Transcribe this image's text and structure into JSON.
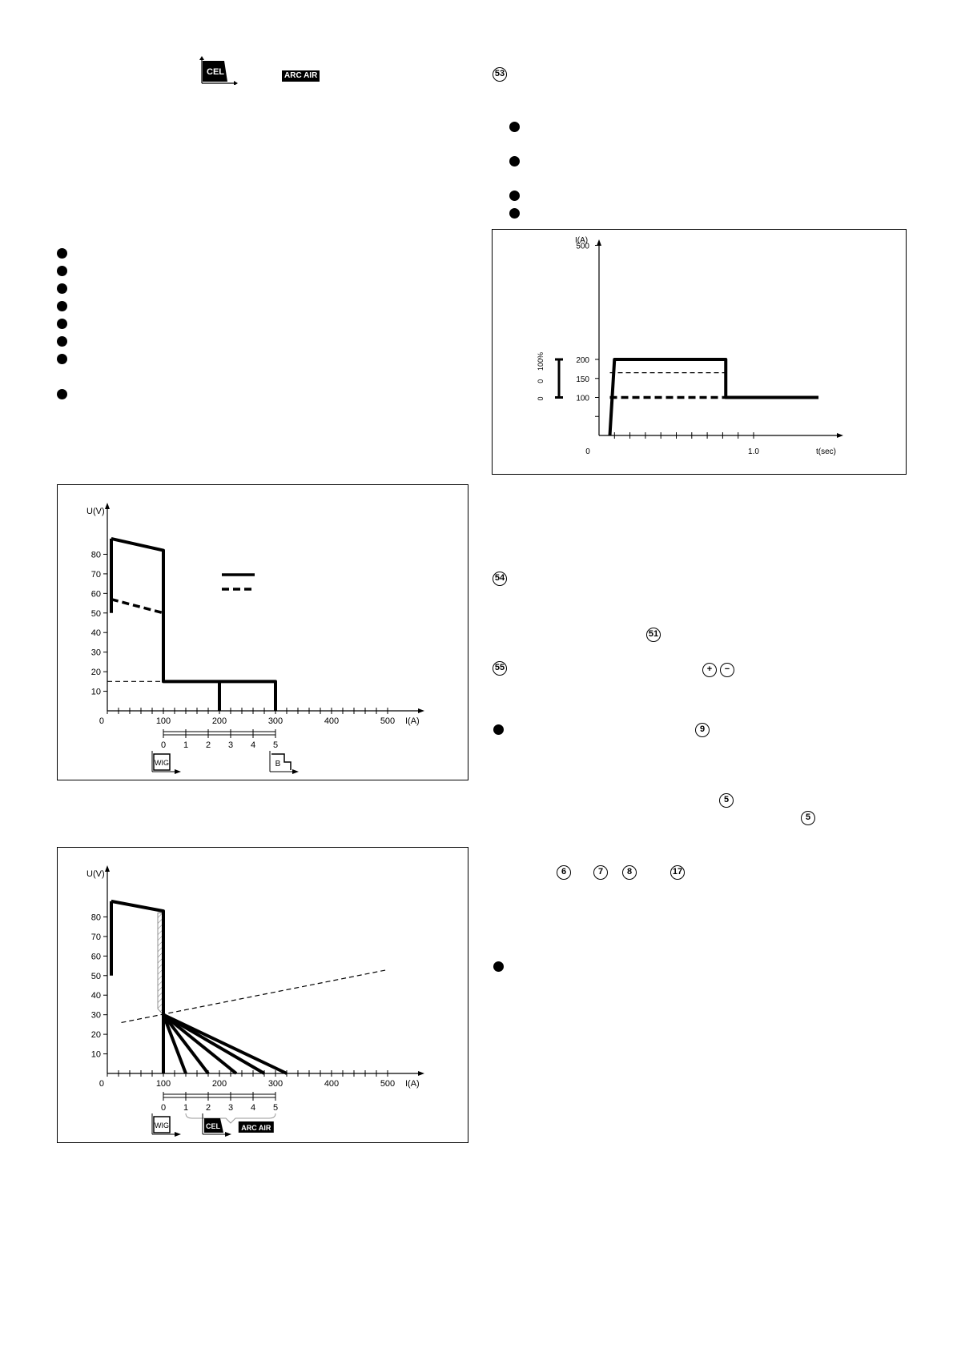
{
  "header_icons": {
    "cel_label": "CEL",
    "arc_air_label": "ARC AIR"
  },
  "markers": {
    "m53": "53",
    "m54": "54",
    "m51": "51",
    "m55": "55",
    "m9": "9",
    "m5a": "5",
    "m5b": "5",
    "m6": "6",
    "m7": "7",
    "m8": "8",
    "m17": "17",
    "plus": "+",
    "minus": "−"
  },
  "chart_data": [
    {
      "type": "line",
      "xlabel": "I(A)",
      "ylabel": "U(V)",
      "xlim": [
        0,
        500
      ],
      "ylim": [
        0,
        90
      ],
      "x_ticks": [
        "0",
        "100",
        "200",
        "300",
        "400",
        "500"
      ],
      "y_ticks": [
        "10",
        "20",
        "30",
        "40",
        "50",
        "60",
        "70",
        "80"
      ],
      "sub_scale": [
        "0",
        "1",
        "2",
        "3",
        "4",
        "5"
      ],
      "icons": [
        "WIG",
        "B"
      ],
      "series": [
        {
          "style": "solid",
          "points": [
            [
              7,
              88
            ],
            [
              100,
              82
            ],
            [
              100,
              15
            ],
            [
              300,
              15
            ],
            [
              300,
              0
            ]
          ]
        },
        {
          "style": "solid",
          "points": [
            [
              200,
              15
            ],
            [
              200,
              0
            ]
          ]
        },
        {
          "style": "dashed-thick",
          "points": [
            [
              7,
              57
            ],
            [
              100,
              50
            ],
            [
              100,
              15
            ]
          ]
        },
        {
          "style": "dashed-thin",
          "points": [
            [
              0,
              15
            ],
            [
              100,
              15
            ]
          ]
        }
      ]
    },
    {
      "type": "line",
      "xlabel": "I(A)",
      "ylabel": "U(V)",
      "xlim": [
        0,
        500
      ],
      "ylim": [
        0,
        90
      ],
      "x_ticks": [
        "0",
        "100",
        "200",
        "300",
        "400",
        "500"
      ],
      "y_ticks": [
        "10",
        "20",
        "30",
        "40",
        "50",
        "60",
        "70",
        "80"
      ],
      "sub_scale": [
        "0",
        "1",
        "2",
        "3",
        "4",
        "5"
      ],
      "icons": [
        "WIG",
        "CEL",
        "ARC AIR"
      ],
      "series": [
        {
          "style": "solid",
          "points": [
            [
              7,
              88
            ],
            [
              100,
              83
            ],
            [
              100,
              0
            ]
          ]
        },
        {
          "style": "solid",
          "points": [
            [
              100,
              30
            ],
            [
              140,
              0
            ]
          ]
        },
        {
          "style": "solid",
          "points": [
            [
              100,
              30
            ],
            [
              180,
              0
            ]
          ]
        },
        {
          "style": "solid",
          "points": [
            [
              100,
              30
            ],
            [
              230,
              0
            ]
          ]
        },
        {
          "style": "solid",
          "points": [
            [
              100,
              30
            ],
            [
              280,
              0
            ]
          ]
        },
        {
          "style": "solid",
          "points": [
            [
              100,
              30
            ],
            [
              320,
              0
            ]
          ]
        },
        {
          "style": "dashed-thin",
          "points": [
            [
              25,
              26
            ],
            [
              500,
              53
            ]
          ]
        }
      ]
    },
    {
      "type": "line",
      "xlabel": "t(sec)",
      "ylabel": "I(A)",
      "xlim": [
        0,
        1.6
      ],
      "ylim": [
        0,
        550
      ],
      "x_ticks": [
        "0",
        "1.0"
      ],
      "y_ticks": [
        "100",
        "150",
        "200",
        "500"
      ],
      "side_labels": [
        "100%",
        "0",
        "0"
      ],
      "series": [
        {
          "style": "solid",
          "points": [
            [
              0.07,
              0
            ],
            [
              0.1,
              200
            ],
            [
              0.82,
              200
            ],
            [
              0.82,
              100
            ],
            [
              1.42,
              100
            ]
          ]
        },
        {
          "style": "dashed-thin",
          "points": [
            [
              0.07,
              165
            ],
            [
              0.82,
              165
            ]
          ]
        },
        {
          "style": "dashed-thick",
          "points": [
            [
              0.07,
              100
            ],
            [
              0.82,
              100
            ]
          ]
        }
      ]
    }
  ]
}
